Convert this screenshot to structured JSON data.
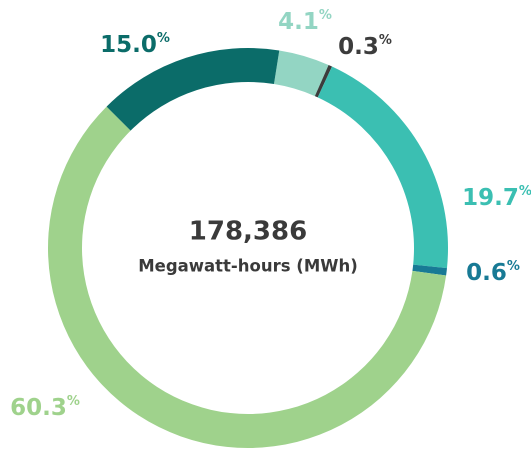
{
  "chart_data": {
    "type": "donut",
    "center_label": "178,386",
    "center_sublabel": "Megawatt-hours (MWh)",
    "values": [
      4.1,
      0.3,
      19.7,
      0.6,
      60.3,
      15.0
    ],
    "value_labels": [
      "4.1%",
      "0.3%",
      "19.7%",
      "0.6%",
      "60.3%",
      "15.0%"
    ],
    "colors": [
      "#93d5c3",
      "#3c3c3c",
      "#3bbfb2",
      "#187a95",
      "#9fd28c",
      "#0b6c69"
    ]
  }
}
